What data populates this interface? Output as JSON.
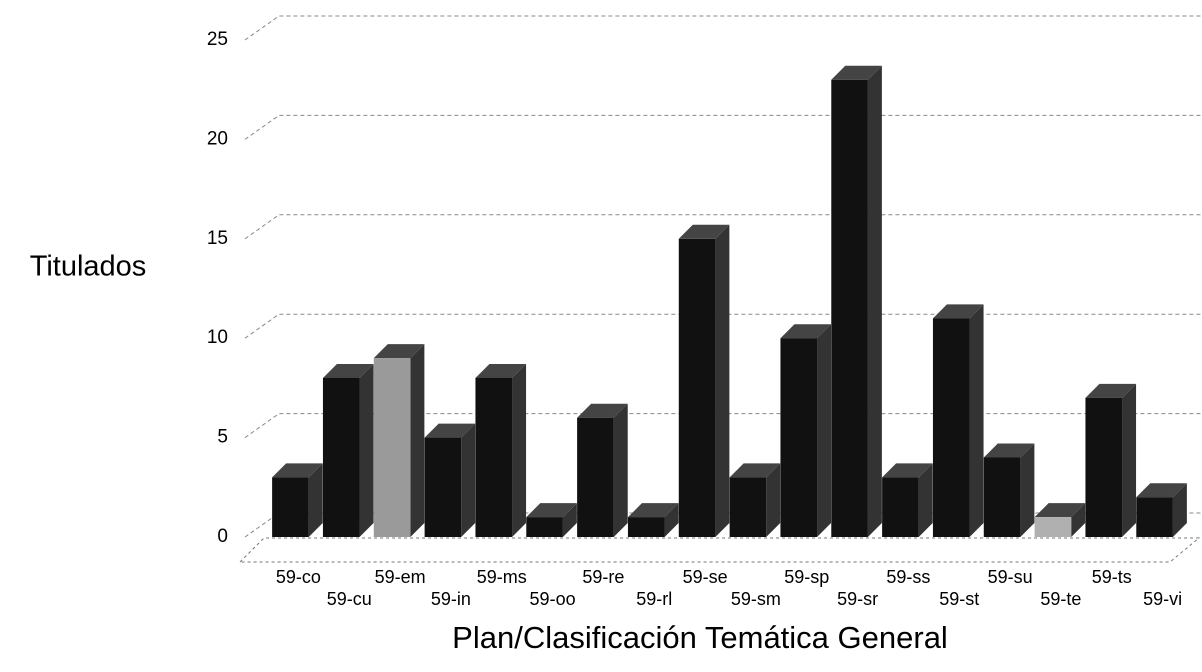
{
  "chart_data": {
    "type": "bar3d",
    "x_label": "Plan/Clasificación Temática General",
    "y_label": "Titulados",
    "categories": [
      "59-co",
      "59-cu",
      "59-em",
      "59-in",
      "59-ms",
      "59-oo",
      "59-re",
      "59-rl",
      "59-se",
      "59-sm",
      "59-sp",
      "59-sr",
      "59-ss",
      "59-st",
      "59-su",
      "59-te",
      "59-ts",
      "59-vi"
    ],
    "values": [
      3,
      8,
      9,
      5,
      8,
      1,
      6,
      1,
      15,
      3,
      10,
      23,
      3,
      11,
      4,
      1,
      7,
      2
    ],
    "colors": [
      "#111111",
      "#111111",
      "#9a9a9a",
      "#111111",
      "#111111",
      "#111111",
      "#111111",
      "#111111",
      "#111111",
      "#111111",
      "#111111",
      "#111111",
      "#111111",
      "#111111",
      "#111111",
      "#b0b0b0",
      "#111111",
      "#111111"
    ],
    "ylim": [
      0,
      25
    ],
    "yticks": [
      0,
      5,
      10,
      15,
      20,
      25
    ],
    "grid": true
  }
}
